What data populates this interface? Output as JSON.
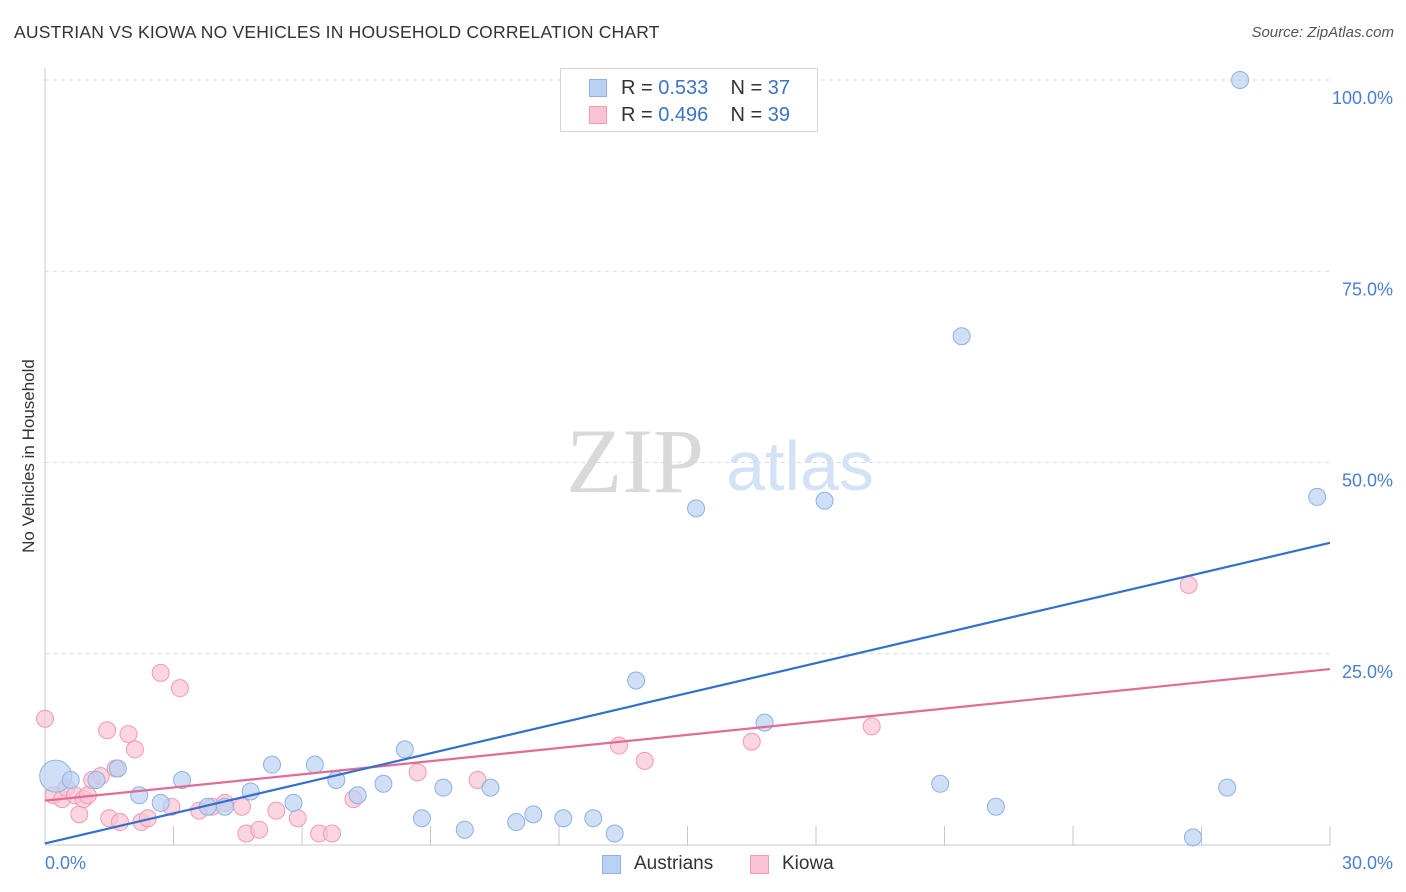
{
  "title": "AUSTRIAN VS KIOWA NO VEHICLES IN HOUSEHOLD CORRELATION CHART",
  "source": "Source: ZipAtlas.com",
  "watermark": {
    "zip": "ZIP",
    "atlas": "atlas"
  },
  "legend": {
    "rows": [
      {
        "r_label": "R = ",
        "r_value": "0.533",
        "n_label": "N = ",
        "n_value": "37"
      },
      {
        "r_label": "R = ",
        "r_value": "0.496",
        "n_label": "N = ",
        "n_value": "39"
      }
    ]
  },
  "bottom_legend": {
    "austrians": "Austrians",
    "kiowa": "Kiowa"
  },
  "colors": {
    "austrians_fill": "#b9d1f2",
    "austrians_stroke": "#8fb2e3",
    "austrians_line": "#3270cc",
    "kiowa_fill": "#f9c3d3",
    "kiowa_stroke": "#f09bb6",
    "kiowa_line": "#e36b97",
    "grid": "#d8d8d8",
    "tick_text": "#4a7fcf"
  },
  "chart_data": {
    "type": "scatter",
    "title": "AUSTRIAN VS KIOWA NO VEHICLES IN HOUSEHOLD CORRELATION CHART",
    "xlabel": "",
    "ylabel": "No Vehicles in Household",
    "xlim": [
      0,
      30
    ],
    "ylim": [
      0,
      100
    ],
    "x_tick_labels": [
      "0.0%",
      "30.0%"
    ],
    "y_ticks": [
      25,
      50,
      75,
      100
    ],
    "y_tick_labels": [
      "25.0%",
      "50.0%",
      "75.0%",
      "100.0%"
    ],
    "series": [
      {
        "name": "Austrians",
        "r": 0.533,
        "n": 37,
        "trend": {
          "x0": 0,
          "y0": 0.2,
          "x1": 30,
          "y1": 39.5
        },
        "points": [
          {
            "x": 0.25,
            "y": 9.0,
            "big": true
          },
          {
            "x": 0.6,
            "y": 8.5
          },
          {
            "x": 1.2,
            "y": 8.5
          },
          {
            "x": 1.7,
            "y": 10.0
          },
          {
            "x": 2.2,
            "y": 6.5
          },
          {
            "x": 2.7,
            "y": 5.5
          },
          {
            "x": 3.2,
            "y": 8.5
          },
          {
            "x": 3.8,
            "y": 5.0
          },
          {
            "x": 4.2,
            "y": 5.0
          },
          {
            "x": 4.8,
            "y": 7.0
          },
          {
            "x": 5.3,
            "y": 10.5
          },
          {
            "x": 5.8,
            "y": 5.5
          },
          {
            "x": 6.3,
            "y": 10.5
          },
          {
            "x": 6.8,
            "y": 8.5
          },
          {
            "x": 7.3,
            "y": 6.5
          },
          {
            "x": 7.9,
            "y": 8.0
          },
          {
            "x": 8.4,
            "y": 12.5
          },
          {
            "x": 8.8,
            "y": 3.5
          },
          {
            "x": 9.3,
            "y": 7.5
          },
          {
            "x": 9.8,
            "y": 2.0
          },
          {
            "x": 10.4,
            "y": 7.5
          },
          {
            "x": 11.0,
            "y": 3.0
          },
          {
            "x": 11.4,
            "y": 4.0
          },
          {
            "x": 12.1,
            "y": 3.5
          },
          {
            "x": 12.8,
            "y": 3.5
          },
          {
            "x": 13.3,
            "y": 1.5
          },
          {
            "x": 13.8,
            "y": 21.5
          },
          {
            "x": 15.2,
            "y": 44.0
          },
          {
            "x": 16.8,
            "y": 16.0
          },
          {
            "x": 18.2,
            "y": 45.0
          },
          {
            "x": 20.9,
            "y": 8.0
          },
          {
            "x": 21.4,
            "y": 66.5
          },
          {
            "x": 22.2,
            "y": 5.0
          },
          {
            "x": 26.8,
            "y": 1.0
          },
          {
            "x": 27.6,
            "y": 7.5
          },
          {
            "x": 27.9,
            "y": 100.0
          },
          {
            "x": 29.7,
            "y": 45.5
          }
        ]
      },
      {
        "name": "Kiowa",
        "r": 0.496,
        "n": 39,
        "trend": {
          "x0": 0,
          "y0": 5.8,
          "x1": 30,
          "y1": 23.0
        },
        "points": [
          {
            "x": 0.0,
            "y": 16.5
          },
          {
            "x": 0.2,
            "y": 6.5
          },
          {
            "x": 0.4,
            "y": 6.0
          },
          {
            "x": 0.5,
            "y": 7.5
          },
          {
            "x": 0.7,
            "y": 6.5
          },
          {
            "x": 0.8,
            "y": 4.0
          },
          {
            "x": 0.9,
            "y": 6.0
          },
          {
            "x": 1.0,
            "y": 6.5
          },
          {
            "x": 1.1,
            "y": 8.5
          },
          {
            "x": 1.3,
            "y": 9.0
          },
          {
            "x": 1.45,
            "y": 15.0
          },
          {
            "x": 1.5,
            "y": 3.5
          },
          {
            "x": 1.65,
            "y": 10.0
          },
          {
            "x": 1.75,
            "y": 3.0
          },
          {
            "x": 1.95,
            "y": 14.5
          },
          {
            "x": 2.1,
            "y": 12.5
          },
          {
            "x": 2.25,
            "y": 3.0
          },
          {
            "x": 2.4,
            "y": 3.5
          },
          {
            "x": 2.7,
            "y": 22.5
          },
          {
            "x": 2.95,
            "y": 5.0
          },
          {
            "x": 3.15,
            "y": 20.5
          },
          {
            "x": 3.6,
            "y": 4.5
          },
          {
            "x": 3.9,
            "y": 5.0
          },
          {
            "x": 4.2,
            "y": 5.5
          },
          {
            "x": 4.6,
            "y": 5.0
          },
          {
            "x": 4.7,
            "y": 1.5
          },
          {
            "x": 5.0,
            "y": 2.0
          },
          {
            "x": 5.4,
            "y": 4.5
          },
          {
            "x": 5.9,
            "y": 3.5
          },
          {
            "x": 6.4,
            "y": 1.5
          },
          {
            "x": 6.7,
            "y": 1.5
          },
          {
            "x": 7.2,
            "y": 6.0
          },
          {
            "x": 8.7,
            "y": 9.5
          },
          {
            "x": 10.1,
            "y": 8.5
          },
          {
            "x": 13.4,
            "y": 13.0
          },
          {
            "x": 14.0,
            "y": 11.0
          },
          {
            "x": 16.5,
            "y": 13.5
          },
          {
            "x": 19.3,
            "y": 15.5
          },
          {
            "x": 26.7,
            "y": 34.0
          }
        ]
      }
    ]
  }
}
